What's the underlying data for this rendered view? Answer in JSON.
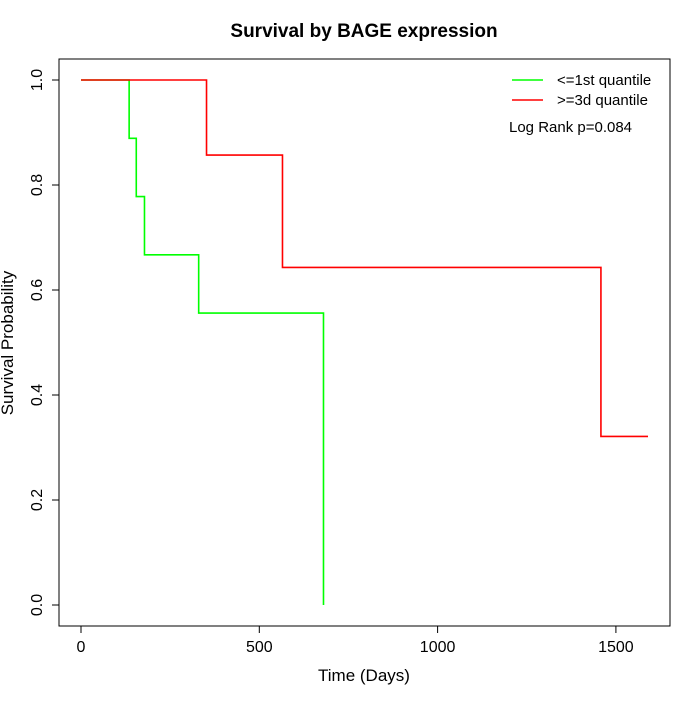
{
  "chart_data": {
    "type": "line",
    "subtype": "kaplan-meier",
    "title": "Survival by BAGE expression",
    "xlabel": "Time (Days)",
    "ylabel": "Survival Probability",
    "xlim": [
      0,
      1600
    ],
    "ylim": [
      0,
      1
    ],
    "x_ticks": [
      0,
      500,
      1000,
      1500
    ],
    "x_tick_labels": [
      "0",
      "500",
      "1000",
      "1500"
    ],
    "y_ticks": [
      0,
      0.2,
      0.4,
      0.6,
      0.8,
      1
    ],
    "y_tick_labels": [
      "0.0",
      "0.2",
      "0.4",
      "0.6",
      "0.8",
      "1.0"
    ],
    "grid": false,
    "legend_position": "top-right",
    "annotation": "Log Rank p=0.084",
    "series": [
      {
        "name": "<=1st quantile",
        "color": "#00ff00",
        "x": [
          0,
          135,
          155,
          178,
          330,
          680
        ],
        "y": [
          1.0,
          0.889,
          0.778,
          0.667,
          0.556,
          0.0
        ]
      },
      {
        "name": ">=3d quantile",
        "color": "#ff0000",
        "x": [
          0,
          352,
          565,
          1458,
          1590
        ],
        "y": [
          1.0,
          0.857,
          0.643,
          0.321,
          0.321
        ]
      }
    ]
  }
}
